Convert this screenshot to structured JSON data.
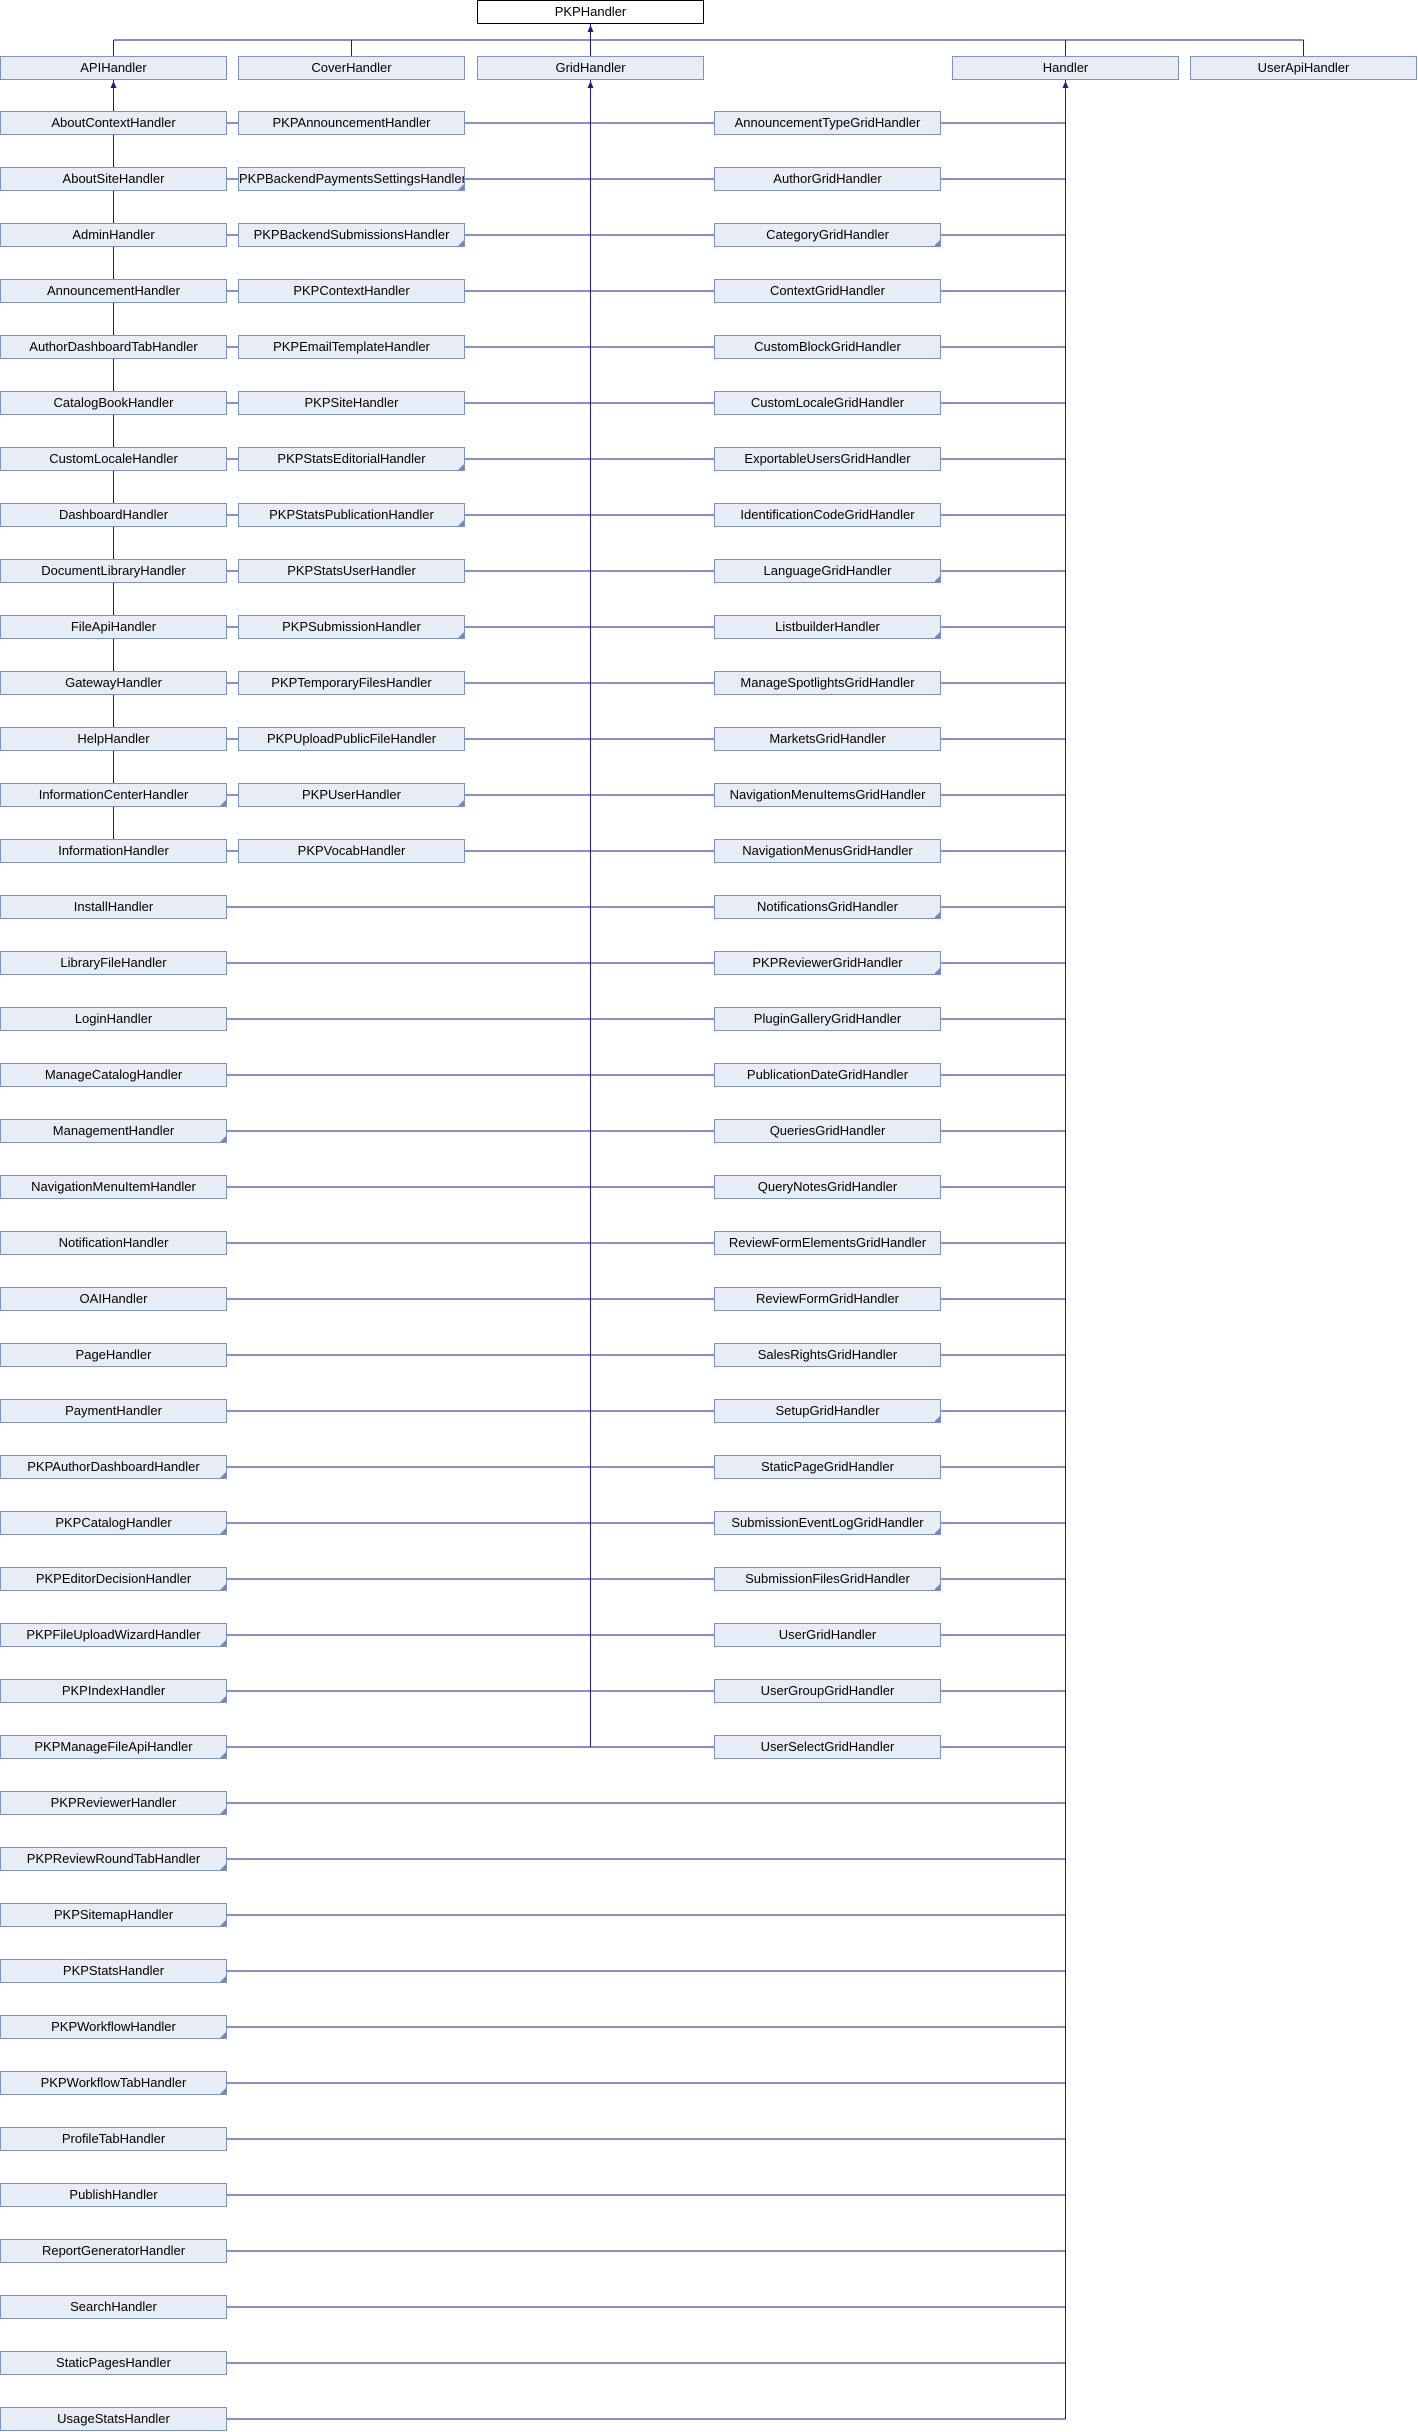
{
  "diagram": {
    "colors": {
      "line": "#1a1a9a",
      "box_fill": "#e8ecf5",
      "box_border": "#7b93cc",
      "root_fill": "#ffffff"
    },
    "root": {
      "label": "PKPHandler"
    },
    "children": [
      {
        "label": "APIHandler",
        "children": [
          {
            "label": "PKPAnnouncementHandler"
          },
          {
            "label": "PKPBackendPaymentsSettingsHandler",
            "more": true
          },
          {
            "label": "PKPBackendSubmissionsHandler",
            "more": true
          },
          {
            "label": "PKPContextHandler"
          },
          {
            "label": "PKPEmailTemplateHandler"
          },
          {
            "label": "PKPSiteHandler"
          },
          {
            "label": "PKPStatsEditorialHandler",
            "more": true
          },
          {
            "label": "PKPStatsPublicationHandler",
            "more": true
          },
          {
            "label": "PKPStatsUserHandler"
          },
          {
            "label": "PKPSubmissionHandler",
            "more": true
          },
          {
            "label": "PKPTemporaryFilesHandler"
          },
          {
            "label": "PKPUploadPublicFileHandler"
          },
          {
            "label": "PKPUserHandler",
            "more": true
          },
          {
            "label": "PKPVocabHandler"
          }
        ]
      },
      {
        "label": "CoverHandler",
        "children": []
      },
      {
        "label": "GridHandler",
        "children": [
          {
            "label": "AnnouncementTypeGridHandler"
          },
          {
            "label": "AuthorGridHandler"
          },
          {
            "label": "CategoryGridHandler",
            "more": true
          },
          {
            "label": "ContextGridHandler"
          },
          {
            "label": "CustomBlockGridHandler"
          },
          {
            "label": "CustomLocaleGridHandler"
          },
          {
            "label": "ExportableUsersGridHandler"
          },
          {
            "label": "IdentificationCodeGridHandler"
          },
          {
            "label": "LanguageGridHandler",
            "more": true
          },
          {
            "label": "ListbuilderHandler",
            "more": true
          },
          {
            "label": "ManageSpotlightsGridHandler"
          },
          {
            "label": "MarketsGridHandler"
          },
          {
            "label": "NavigationMenuItemsGridHandler"
          },
          {
            "label": "NavigationMenusGridHandler"
          },
          {
            "label": "NotificationsGridHandler",
            "more": true
          },
          {
            "label": "PKPReviewerGridHandler",
            "more": true
          },
          {
            "label": "PluginGalleryGridHandler"
          },
          {
            "label": "PublicationDateGridHandler"
          },
          {
            "label": "QueriesGridHandler"
          },
          {
            "label": "QueryNotesGridHandler"
          },
          {
            "label": "ReviewFormElementsGridHandler"
          },
          {
            "label": "ReviewFormGridHandler"
          },
          {
            "label": "SalesRightsGridHandler"
          },
          {
            "label": "SetupGridHandler",
            "more": true
          },
          {
            "label": "StaticPageGridHandler"
          },
          {
            "label": "SubmissionEventLogGridHandler",
            "more": true
          },
          {
            "label": "SubmissionFilesGridHandler",
            "more": true
          },
          {
            "label": "UserGridHandler"
          },
          {
            "label": "UserGroupGridHandler"
          },
          {
            "label": "UserSelectGridHandler"
          }
        ]
      },
      {
        "label": "Handler",
        "children": [
          {
            "label": "AboutContextHandler"
          },
          {
            "label": "AboutSiteHandler"
          },
          {
            "label": "AdminHandler"
          },
          {
            "label": "AnnouncementHandler"
          },
          {
            "label": "AuthorDashboardTabHandler"
          },
          {
            "label": "CatalogBookHandler"
          },
          {
            "label": "CustomLocaleHandler"
          },
          {
            "label": "DashboardHandler"
          },
          {
            "label": "DocumentLibraryHandler"
          },
          {
            "label": "FileApiHandler"
          },
          {
            "label": "GatewayHandler"
          },
          {
            "label": "HelpHandler"
          },
          {
            "label": "InformationCenterHandler",
            "more": true
          },
          {
            "label": "InformationHandler"
          },
          {
            "label": "InstallHandler"
          },
          {
            "label": "LibraryFileHandler"
          },
          {
            "label": "LoginHandler"
          },
          {
            "label": "ManageCatalogHandler"
          },
          {
            "label": "ManagementHandler",
            "more": true
          },
          {
            "label": "NavigationMenuItemHandler"
          },
          {
            "label": "NotificationHandler"
          },
          {
            "label": "OAIHandler"
          },
          {
            "label": "PageHandler"
          },
          {
            "label": "PaymentHandler"
          },
          {
            "label": "PKPAuthorDashboardHandler",
            "more": true
          },
          {
            "label": "PKPCatalogHandler",
            "more": true
          },
          {
            "label": "PKPEditorDecisionHandler",
            "more": true
          },
          {
            "label": "PKPFileUploadWizardHandler",
            "more": true
          },
          {
            "label": "PKPIndexHandler",
            "more": true
          },
          {
            "label": "PKPManageFileApiHandler",
            "more": true
          },
          {
            "label": "PKPReviewerHandler",
            "more": true
          },
          {
            "label": "PKPReviewRoundTabHandler",
            "more": true
          },
          {
            "label": "PKPSitemapHandler",
            "more": true
          },
          {
            "label": "PKPStatsHandler",
            "more": true
          },
          {
            "label": "PKPWorkflowHandler",
            "more": true
          },
          {
            "label": "PKPWorkflowTabHandler",
            "more": true
          },
          {
            "label": "ProfileTabHandler"
          },
          {
            "label": "PublishHandler"
          },
          {
            "label": "ReportGeneratorHandler"
          },
          {
            "label": "SearchHandler"
          },
          {
            "label": "StaticPagesHandler"
          },
          {
            "label": "UsageStatsHandler"
          }
        ]
      },
      {
        "label": "UserApiHandler",
        "children": []
      }
    ]
  }
}
